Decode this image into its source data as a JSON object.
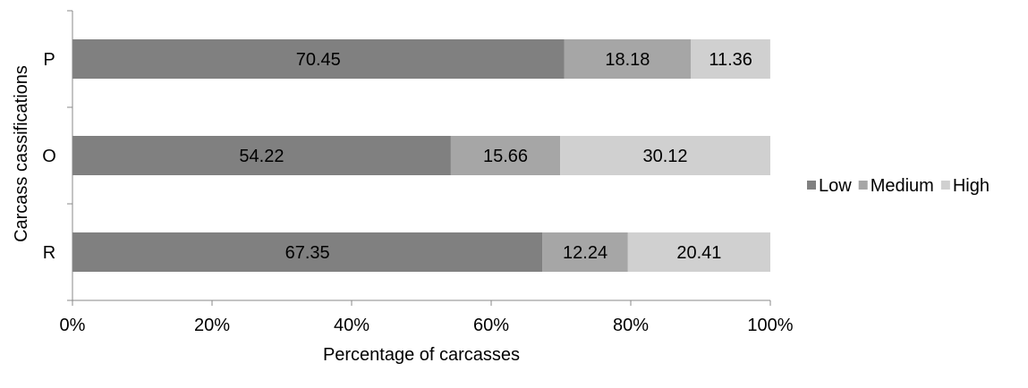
{
  "chart_data": {
    "type": "bar",
    "orientation": "horizontal",
    "stacked": "percent",
    "categories": [
      "P",
      "O",
      "R"
    ],
    "series": [
      {
        "name": "Low",
        "color": "#808080",
        "values": [
          70.45,
          54.22,
          67.35
        ]
      },
      {
        "name": "Medium",
        "color": "#a6a6a6",
        "values": [
          18.18,
          15.66,
          12.24
        ]
      },
      {
        "name": "High",
        "color": "#d0d0d0",
        "values": [
          11.36,
          30.12,
          20.41
        ]
      }
    ],
    "xlabel": "Percentage of carcasses",
    "ylabel": "Carcass cassifications",
    "xlim": [
      0,
      100
    ],
    "x_ticks": [
      "0%",
      "20%",
      "40%",
      "60%",
      "80%",
      "100%"
    ],
    "grid": false,
    "legend": "right"
  }
}
